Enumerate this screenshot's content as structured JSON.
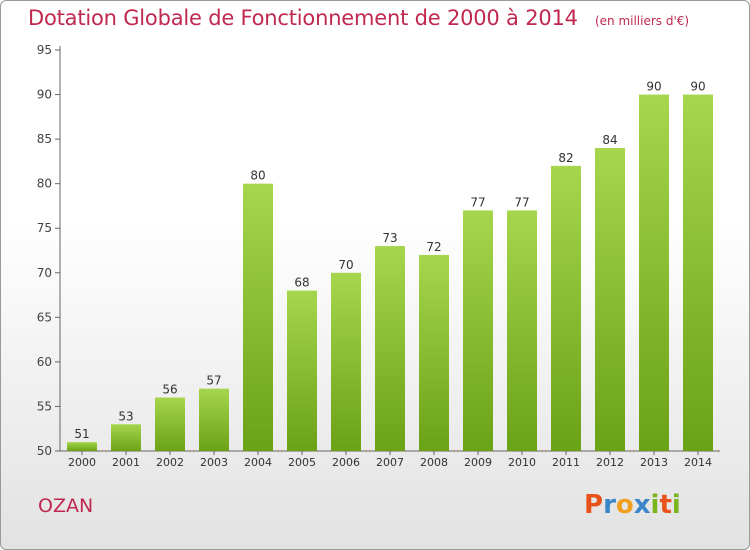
{
  "title": "Dotation Globale de Fonctionnement de 2000 à 2014",
  "subtitle": "(en milliers d'€)",
  "commune": "OZAN",
  "logo": {
    "text": "Proxiti",
    "colors": [
      "#e8531c",
      "#3a86c8",
      "#f0a020",
      "#3a86c8",
      "#7ab51d",
      "#e8531c",
      "#7ab51d"
    ]
  },
  "colors": {
    "title": "#c0284f",
    "bar_light": "#a6d64e",
    "bar_dark": "#6aa217",
    "axis": "#555555"
  },
  "chart_data": {
    "type": "bar",
    "categories": [
      "2000",
      "2001",
      "2002",
      "2003",
      "2004",
      "2005",
      "2006",
      "2007",
      "2008",
      "2009",
      "2010",
      "2011",
      "2012",
      "2013",
      "2014"
    ],
    "values": [
      51,
      53,
      56,
      57,
      80,
      68,
      70,
      73,
      72,
      77,
      77,
      82,
      84,
      90,
      90
    ],
    "ylim": [
      50,
      95
    ],
    "yticks": [
      50,
      55,
      60,
      65,
      70,
      75,
      80,
      85,
      90,
      95
    ],
    "grid": false,
    "legend": "none"
  }
}
